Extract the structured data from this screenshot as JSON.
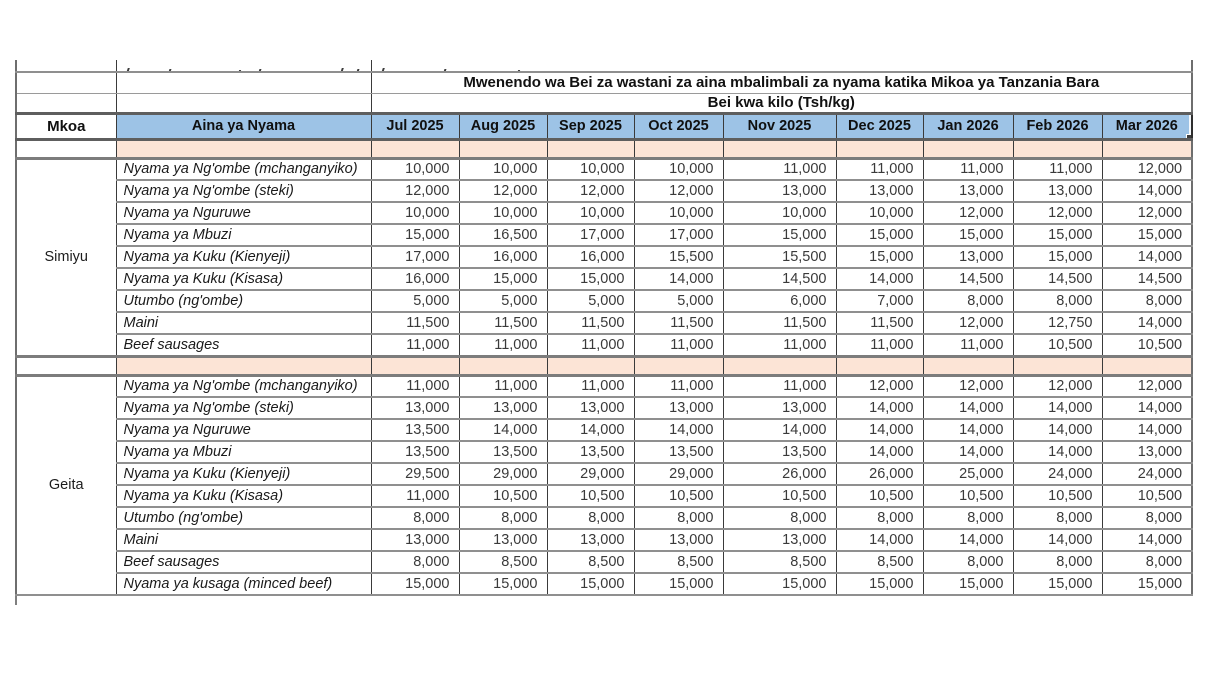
{
  "table": {
    "title": "Mwenendo wa Bei za wastani za aina mbalimbali za nyama katika Mikoa ya Tanzania Bara",
    "subtitle": "Bei kwa kilo (Tsh/kg)",
    "columns": {
      "mkoa": "Mkoa",
      "aina": "Aina ya Nyama",
      "months": [
        "Jul 2025",
        "Aug 2025",
        "Sep 2025",
        "Oct 2025",
        "Nov 2025",
        "Dec 2025",
        "Jan 2026",
        "Feb 2026",
        "Mar 2026"
      ]
    },
    "sections": [
      {
        "region": "Simiyu",
        "rows": [
          {
            "name": "Nyama ya Ng'ombe (mchanganyiko)",
            "values": [
              "10,000",
              "10,000",
              "10,000",
              "10,000",
              "11,000",
              "11,000",
              "11,000",
              "11,000",
              "12,000"
            ]
          },
          {
            "name": "Nyama ya Ng'ombe (steki)",
            "values": [
              "12,000",
              "12,000",
              "12,000",
              "12,000",
              "13,000",
              "13,000",
              "13,000",
              "13,000",
              "14,000"
            ]
          },
          {
            "name": "Nyama ya Nguruwe",
            "values": [
              "10,000",
              "10,000",
              "10,000",
              "10,000",
              "10,000",
              "10,000",
              "12,000",
              "12,000",
              "12,000"
            ]
          },
          {
            "name": "Nyama ya Mbuzi",
            "values": [
              "15,000",
              "16,500",
              "17,000",
              "17,000",
              "15,000",
              "15,000",
              "15,000",
              "15,000",
              "15,000"
            ]
          },
          {
            "name": "Nyama ya Kuku (Kienyeji)",
            "values": [
              "17,000",
              "16,000",
              "16,000",
              "15,500",
              "15,500",
              "15,000",
              "13,000",
              "15,000",
              "14,000"
            ]
          },
          {
            "name": "Nyama ya Kuku (Kisasa)",
            "values": [
              "16,000",
              "15,000",
              "15,000",
              "14,000",
              "14,500",
              "14,000",
              "14,500",
              "14,500",
              "14,500"
            ]
          },
          {
            "name": "Utumbo (ng'ombe)",
            "values": [
              "5,000",
              "5,000",
              "5,000",
              "5,000",
              "6,000",
              "7,000",
              "8,000",
              "8,000",
              "8,000"
            ]
          },
          {
            "name": "Maini",
            "values": [
              "11,500",
              "11,500",
              "11,500",
              "11,500",
              "11,500",
              "11,500",
              "12,000",
              "12,750",
              "14,000"
            ]
          },
          {
            "name": "Beef sausages",
            "values": [
              "11,000",
              "11,000",
              "11,000",
              "11,000",
              "11,000",
              "11,000",
              "11,000",
              "10,500",
              "10,500"
            ]
          }
        ]
      },
      {
        "region": "Geita",
        "rows": [
          {
            "name": "Nyama ya Ng'ombe (mchanganyiko)",
            "values": [
              "11,000",
              "11,000",
              "11,000",
              "11,000",
              "11,000",
              "12,000",
              "12,000",
              "12,000",
              "12,000"
            ]
          },
          {
            "name": "Nyama ya Ng'ombe (steki)",
            "values": [
              "13,000",
              "13,000",
              "13,000",
              "13,000",
              "13,000",
              "14,000",
              "14,000",
              "14,000",
              "14,000"
            ]
          },
          {
            "name": "Nyama ya Nguruwe",
            "values": [
              "13,500",
              "14,000",
              "14,000",
              "14,000",
              "14,000",
              "14,000",
              "14,000",
              "14,000",
              "14,000"
            ]
          },
          {
            "name": "Nyama ya Mbuzi",
            "values": [
              "13,500",
              "13,500",
              "13,500",
              "13,500",
              "13,500",
              "14,000",
              "14,000",
              "14,000",
              "13,000"
            ]
          },
          {
            "name": "Nyama ya Kuku (Kienyeji)",
            "values": [
              "29,500",
              "29,000",
              "29,000",
              "29,000",
              "26,000",
              "26,000",
              "25,000",
              "24,000",
              "24,000"
            ]
          },
          {
            "name": "Nyama ya Kuku (Kisasa)",
            "values": [
              "11,000",
              "10,500",
              "10,500",
              "10,500",
              "10,500",
              "10,500",
              "10,500",
              "10,500",
              "10,500"
            ]
          },
          {
            "name": "Utumbo (ng'ombe)",
            "values": [
              "8,000",
              "8,000",
              "8,000",
              "8,000",
              "8,000",
              "8,000",
              "8,000",
              "8,000",
              "8,000"
            ]
          },
          {
            "name": "Maini",
            "values": [
              "13,000",
              "13,000",
              "13,000",
              "13,000",
              "13,000",
              "14,000",
              "14,000",
              "14,000",
              "14,000"
            ]
          },
          {
            "name": "Beef sausages",
            "values": [
              "8,000",
              "8,500",
              "8,500",
              "8,500",
              "8,500",
              "8,500",
              "8,000",
              "8,000",
              "8,000"
            ]
          },
          {
            "name": "Nyama ya kusaga (minced beef)",
            "values": [
              "15,000",
              "15,000",
              "15,000",
              "15,000",
              "15,000",
              "15,000",
              "15,000",
              "15,000",
              "15,000"
            ]
          }
        ]
      }
    ],
    "colors": {
      "header_fill": "#9DC3E6",
      "spacer_fill": "#FCE4D6",
      "grid_line": "#8f8f8f",
      "thick_line": "#5e5e5e",
      "text": "#1f1f1f"
    }
  }
}
